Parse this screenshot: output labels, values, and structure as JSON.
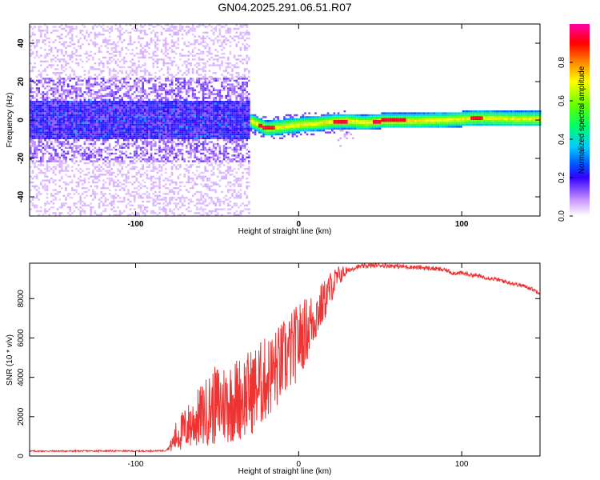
{
  "figure": {
    "title": "GN04.2025.291.06.51.R07"
  },
  "chart_data": [
    {
      "type": "heatmap",
      "title": "GN04.2025.291.06.51.R07",
      "xlabel": "Height of straight line (km)",
      "ylabel": "Frequency (Hz)",
      "xlim": [
        -165,
        148
      ],
      "ylim": [
        -50,
        50
      ],
      "xticks": [
        -100,
        0,
        100
      ],
      "yticks": [
        -40,
        -20,
        0,
        20,
        40
      ],
      "xtick_labels": [
        "-100",
        "0",
        "100"
      ],
      "ytick_labels": [
        "-40",
        "-20",
        "0",
        "20",
        "40"
      ],
      "colorbar": {
        "label": "Normalized spectral amplitude",
        "range": [
          0,
          1
        ],
        "ticks": [
          0.0,
          0.2,
          0.4,
          0.6,
          0.8
        ],
        "tick_labels": [
          "0.0",
          "0.2",
          "0.4",
          "0.6",
          "0.8"
        ],
        "colormap": [
          "#ffffff",
          "#cc99ff",
          "#3300ff",
          "#0033ff",
          "#00ccff",
          "#00ff66",
          "#66ff00",
          "#ffff00",
          "#ff8800",
          "#ff0000",
          "#ff00aa"
        ]
      },
      "regions": [
        {
          "x": [
            -165,
            -30
          ],
          "description": "broad noise band",
          "freq_center": 0,
          "freq_halfwidth_core": 10,
          "freq_halfwidth_halo": 50,
          "amplitude": 0.2
        },
        {
          "x": [
            -30,
            148
          ],
          "description": "narrow signal line",
          "freq_center": 0,
          "freq_halfwidth": 4,
          "amplitude": 0.75
        }
      ],
      "signal_centerline": [
        {
          "x": -30,
          "f": 0
        },
        {
          "x": -20,
          "f": -4
        },
        {
          "x": -10,
          "f": -3
        },
        {
          "x": 0,
          "f": -2
        },
        {
          "x": 10,
          "f": -1.5
        },
        {
          "x": 20,
          "f": -0.5
        },
        {
          "x": 30,
          "f": 0
        },
        {
          "x": 40,
          "f": -1
        },
        {
          "x": 50,
          "f": 0
        },
        {
          "x": 70,
          "f": 0
        },
        {
          "x": 90,
          "f": 0.5
        },
        {
          "x": 110,
          "f": 1.5
        },
        {
          "x": 130,
          "f": 1
        },
        {
          "x": 148,
          "f": 1
        }
      ]
    },
    {
      "type": "line",
      "xlabel": "Height of straight line (km)",
      "ylabel": "SNR (10 * v/v)",
      "xlim": [
        -165,
        148
      ],
      "ylim": [
        0,
        9800
      ],
      "xticks": [
        -100,
        0,
        100
      ],
      "yticks": [
        0,
        2000,
        4000,
        6000,
        8000
      ],
      "xtick_labels": [
        "-100",
        "0",
        "100"
      ],
      "ytick_labels": [
        "0",
        "2000",
        "4000",
        "6000",
        "8000"
      ],
      "color": "#ee3333",
      "series": [
        {
          "x": [
            -165,
            -140,
            -120,
            -100,
            -90,
            -82,
            -78,
            -75,
            -70,
            -65,
            -60,
            -55,
            -50,
            -45,
            -40,
            -35,
            -30,
            -25,
            -20,
            -15,
            -10,
            -5,
            0,
            5,
            10,
            15,
            20,
            25,
            30,
            35,
            40,
            50,
            60,
            70,
            80,
            90,
            95,
            100,
            110,
            120,
            130,
            140,
            148
          ],
          "y": [
            250,
            250,
            260,
            250,
            260,
            270,
            500,
            900,
            1200,
            1500,
            1800,
            2100,
            2300,
            2400,
            2500,
            2700,
            2900,
            3200,
            3600,
            4000,
            4500,
            5000,
            5600,
            6200,
            6900,
            7600,
            8500,
            9100,
            9400,
            9600,
            9650,
            9700,
            9650,
            9600,
            9550,
            9450,
            9300,
            9300,
            9150,
            9000,
            8800,
            8600,
            8300
          ]
        }
      ],
      "noise_band": [
        {
          "x": -80,
          "amp": 100
        },
        {
          "x": -75,
          "amp": 1200
        },
        {
          "x": -50,
          "amp": 3000
        },
        {
          "x": -25,
          "amp": 3200
        },
        {
          "x": 0,
          "amp": 2800
        },
        {
          "x": 20,
          "amp": 1200
        },
        {
          "x": 30,
          "amp": 300
        },
        {
          "x": 148,
          "amp": 250
        }
      ]
    }
  ]
}
